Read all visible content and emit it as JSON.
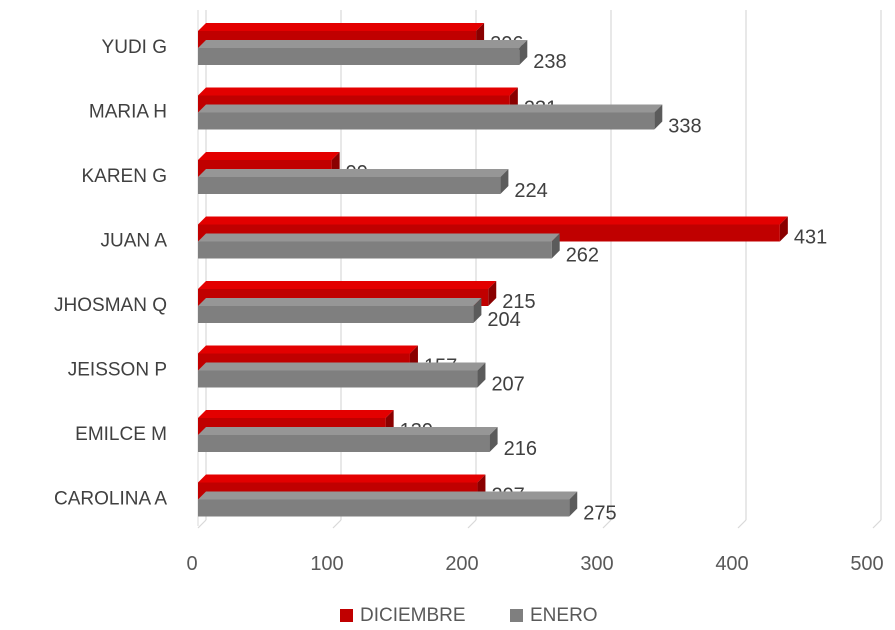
{
  "chart_data": {
    "type": "bar",
    "orientation": "horizontal",
    "style": "3d-clustered",
    "categories": [
      "YUDI G",
      "MARIA H",
      "KAREN G",
      "JUAN A",
      "JHOSMAN Q",
      "JEISSON P",
      "EMILCE M",
      "CAROLINA A"
    ],
    "series": [
      {
        "name": "DICIEMBRE",
        "values": [
          206,
          231,
          99,
          431,
          215,
          157,
          139,
          207
        ],
        "color": "#c00000"
      },
      {
        "name": "ENERO",
        "values": [
          238,
          338,
          224,
          262,
          204,
          207,
          216,
          275
        ],
        "color": "#7f7f7f"
      }
    ],
    "xlim": [
      0,
      500
    ],
    "x_ticks": [
      "0",
      "100",
      "200",
      "300",
      "400",
      "500"
    ],
    "title": "",
    "xlabel": "",
    "ylabel": "",
    "grid": true,
    "legend_position": "bottom"
  }
}
